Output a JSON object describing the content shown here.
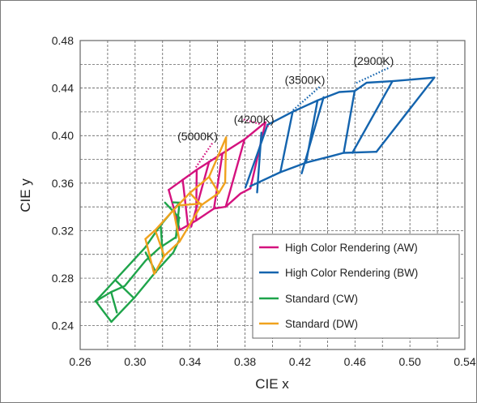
{
  "chart_data": {
    "type": "line",
    "title": "",
    "xlabel": "CIE x",
    "ylabel": "CIE y",
    "xlim": [
      0.26,
      0.54
    ],
    "ylim": [
      0.22,
      0.48
    ],
    "xticks": [
      "0.26",
      "0.30",
      "0.34",
      "0.38",
      "0.42",
      "0.46",
      "0.50",
      "0.54"
    ],
    "yticks": [
      "0.24",
      "0.28",
      "0.32",
      "0.36",
      "0.40",
      "0.44",
      "0.48"
    ],
    "xtick_values": [
      0.26,
      0.3,
      0.34,
      0.38,
      0.42,
      0.46,
      0.5,
      0.54
    ],
    "ytick_values": [
      0.24,
      0.28,
      0.32,
      0.36,
      0.4,
      0.44,
      0.48
    ],
    "grid": true,
    "legend_position": "bottom-right",
    "series": [
      {
        "name": "High Color Rendering (AW)",
        "color": "#d4127e",
        "paths": [
          [
            [
              0.3244,
              0.3543
            ],
            [
              0.3448,
              0.3712
            ],
            [
              0.3636,
              0.385
            ],
            [
              0.3796,
              0.3968
            ],
            [
              0.3949,
              0.4112
            ]
          ],
          [
            [
              0.3325,
              0.3206
            ],
            [
              0.3444,
              0.3285
            ],
            [
              0.3574,
              0.3386
            ],
            [
              0.3659,
              0.3401
            ],
            [
              0.3767,
              0.3512
            ],
            [
              0.3839,
              0.3556
            ]
          ],
          [
            [
              0.3244,
              0.3543
            ],
            [
              0.3325,
              0.3206
            ]
          ],
          [
            [
              0.3346,
              0.3629
            ],
            [
              0.3384,
              0.3245
            ]
          ],
          [
            [
              0.3448,
              0.3712
            ],
            [
              0.3444,
              0.3285
            ]
          ],
          [
            [
              0.3539,
              0.3782
            ],
            [
              0.3408,
              0.3233
            ]
          ],
          [
            [
              0.3636,
              0.385
            ],
            [
              0.3574,
              0.3386
            ]
          ],
          [
            [
              0.3796,
              0.3968
            ],
            [
              0.3659,
              0.3401
            ]
          ],
          [
            [
              0.3949,
              0.4112
            ],
            [
              0.3839,
              0.3556
            ]
          ]
        ]
      },
      {
        "name": "High Color Rendering (BW)",
        "color": "#1464ae",
        "paths": [
          [
            [
              0.3964,
              0.4091
            ],
            [
              0.4147,
              0.4201
            ],
            [
              0.4328,
              0.4296
            ],
            [
              0.4486,
              0.4367
            ],
            [
              0.4598,
              0.4375
            ],
            [
              0.4685,
              0.4445
            ],
            [
              0.4873,
              0.4458
            ],
            [
              0.5178,
              0.4488
            ]
          ],
          [
            [
              0.3838,
              0.3574
            ],
            [
              0.4057,
              0.3692
            ],
            [
              0.4244,
              0.3772
            ],
            [
              0.4434,
              0.3829
            ],
            [
              0.4518,
              0.3855
            ],
            [
              0.4756,
              0.3864
            ]
          ],
          [
            [
              0.5178,
              0.4488
            ],
            [
              0.4756,
              0.3864
            ]
          ],
          [
            [
              0.3964,
              0.4091
            ],
            [
              0.3803,
              0.3564
            ]
          ],
          [
            [
              0.3919,
              0.4025
            ],
            [
              0.3888,
              0.3522
            ]
          ],
          [
            [
              0.4147,
              0.4201
            ],
            [
              0.4057,
              0.3692
            ]
          ],
          [
            [
              0.4328,
              0.4296
            ],
            [
              0.4244,
              0.3772
            ]
          ],
          [
            [
              0.4372,
              0.4323
            ],
            [
              0.4212,
              0.3682
            ]
          ],
          [
            [
              0.4598,
              0.4375
            ],
            [
              0.4518,
              0.3855
            ]
          ],
          [
            [
              0.4873,
              0.4458
            ],
            [
              0.4581,
              0.3855
            ]
          ]
        ]
      },
      {
        "name": "Standard (CW)",
        "color": "#1ea44a",
        "paths": [
          [
            [
              0.2711,
              0.2604
            ],
            [
              0.2825,
              0.2684
            ],
            [
              0.2924,
              0.2734
            ],
            [
              0.3077,
              0.2949
            ],
            [
              0.3177,
              0.3055
            ],
            [
              0.3297,
              0.3145
            ],
            [
              0.3313,
              0.3234
            ],
            [
              0.3318,
              0.3294
            ]
          ],
          [
            [
              0.2711,
              0.2604
            ],
            [
              0.3072,
              0.3057
            ],
            [
              0.3186,
              0.3247
            ],
            [
              0.3323,
              0.3436
            ],
            [
              0.3276,
              0.3438
            ]
          ],
          [
            [
              0.2827,
              0.2433
            ],
            [
              0.3001,
              0.2644
            ],
            [
              0.3148,
              0.2851
            ],
            [
              0.3278,
              0.3016
            ],
            [
              0.332,
              0.3118
            ]
          ],
          [
            [
              0.2712,
              0.2608
            ],
            [
              0.2827,
              0.2433
            ]
          ],
          [
            [
              0.2825,
              0.2684
            ],
            [
              0.2867,
              0.2511
            ]
          ],
          [
            [
              0.2857,
              0.2783
            ],
            [
              0.2992,
              0.2631
            ]
          ],
          [
            [
              0.3077,
              0.3016
            ],
            [
              0.3152,
              0.2849
            ]
          ],
          [
            [
              0.3186,
              0.3247
            ],
            [
              0.3202,
              0.2974
            ]
          ],
          [
            [
              0.3323,
              0.3436
            ],
            [
              0.3296,
              0.3138
            ]
          ],
          [
            [
              0.3218,
              0.3436
            ],
            [
              0.3323,
              0.3307
            ]
          ]
        ]
      },
      {
        "name": "Standard (DW)",
        "color": "#f0a21e",
        "paths": [
          [
            [
              0.3075,
              0.313
            ],
            [
              0.3146,
              0.3204
            ],
            [
              0.3279,
              0.3373
            ],
            [
              0.3398,
              0.3518
            ],
            [
              0.3538,
              0.3652
            ],
            [
              0.3662,
              0.3985
            ]
          ],
          [
            [
              0.3139,
              0.2836
            ],
            [
              0.3212,
              0.2988
            ],
            [
              0.3324,
              0.3108
            ],
            [
              0.3482,
              0.3415
            ],
            [
              0.3609,
              0.3517
            ],
            [
              0.3655,
              0.3605
            ]
          ],
          [
            [
              0.3075,
              0.313
            ],
            [
              0.3139,
              0.2836
            ]
          ],
          [
            [
              0.3146,
              0.3204
            ],
            [
              0.3212,
              0.2988
            ]
          ],
          [
            [
              0.3279,
              0.3373
            ],
            [
              0.3324,
              0.3108
            ]
          ],
          [
            [
              0.3398,
              0.3518
            ],
            [
              0.3482,
              0.3415
            ]
          ],
          [
            [
              0.3538,
              0.3652
            ],
            [
              0.3609,
              0.3517
            ]
          ],
          [
            [
              0.3662,
              0.3985
            ],
            [
              0.3655,
              0.3605
            ]
          ],
          [
            [
              0.3327,
              0.3413
            ],
            [
              0.3478,
              0.3428
            ]
          ]
        ]
      }
    ],
    "annotations": [
      {
        "text": "(5000K)",
        "x": 0.3455,
        "y": 0.3962,
        "anchor": [
          0.344,
          0.3729
        ],
        "color": "#d4127e"
      },
      {
        "text": "(4200K)",
        "x": 0.3865,
        "y": 0.4104,
        "anchor": [
          0.3783,
          0.4138
        ],
        "color": "#d4127e"
      },
      {
        "text": "(3500K)",
        "x": 0.4236,
        "y": 0.4436,
        "anchor": [
          0.4144,
          0.4209
        ],
        "color": "#1464ae"
      },
      {
        "text": "(2900K)",
        "x": 0.4736,
        "y": 0.4595,
        "anchor": [
          0.4596,
          0.4436
        ],
        "color": "#1464ae"
      }
    ]
  }
}
